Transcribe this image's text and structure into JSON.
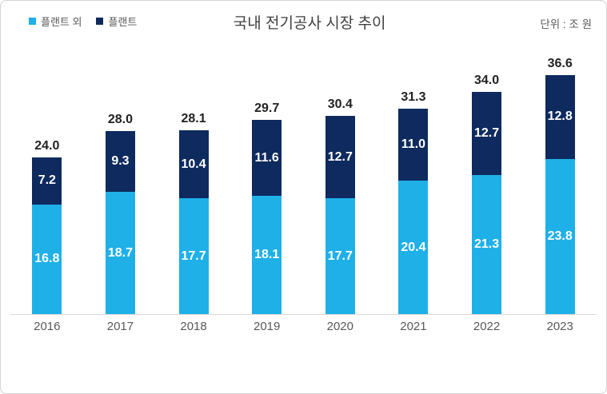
{
  "header": {
    "title": "국내 전기공사 시장 추이",
    "unit_label": "단위 : 조 원"
  },
  "legend": [
    {
      "label": "플랜트 외",
      "color": "#1FB0E8"
    },
    {
      "label": "플랜트",
      "color": "#0E2A5E"
    }
  ],
  "chart_data": {
    "type": "bar",
    "stacked": true,
    "title": "국내 전기공사 시장 추이",
    "unit": "단위 : 조 원",
    "legend_position": "top-left",
    "categories": [
      "2016",
      "2017",
      "2018",
      "2019",
      "2020",
      "2021",
      "2022",
      "2023"
    ],
    "series": [
      {
        "name": "플랜트 외",
        "color": "#1FB0E8",
        "values": [
          16.8,
          18.7,
          17.7,
          18.1,
          17.7,
          20.4,
          21.3,
          23.8
        ]
      },
      {
        "name": "플랜트",
        "color": "#0E2A5E",
        "values": [
          7.2,
          9.3,
          10.4,
          11.6,
          12.7,
          11.0,
          12.7,
          12.8
        ]
      }
    ],
    "totals": [
      24.0,
      28.0,
      28.1,
      29.7,
      30.4,
      31.3,
      34.0,
      36.6
    ],
    "ylim": [
      0,
      40
    ],
    "grid": false,
    "value_format": "one-decimal",
    "colors": {
      "axis_line": "#d9d9d9",
      "axis_label": "#595959",
      "total_label": "#222222",
      "segment_label": "#ffffff",
      "title": "#404040",
      "canvas_border": "#d2d2d2"
    }
  }
}
